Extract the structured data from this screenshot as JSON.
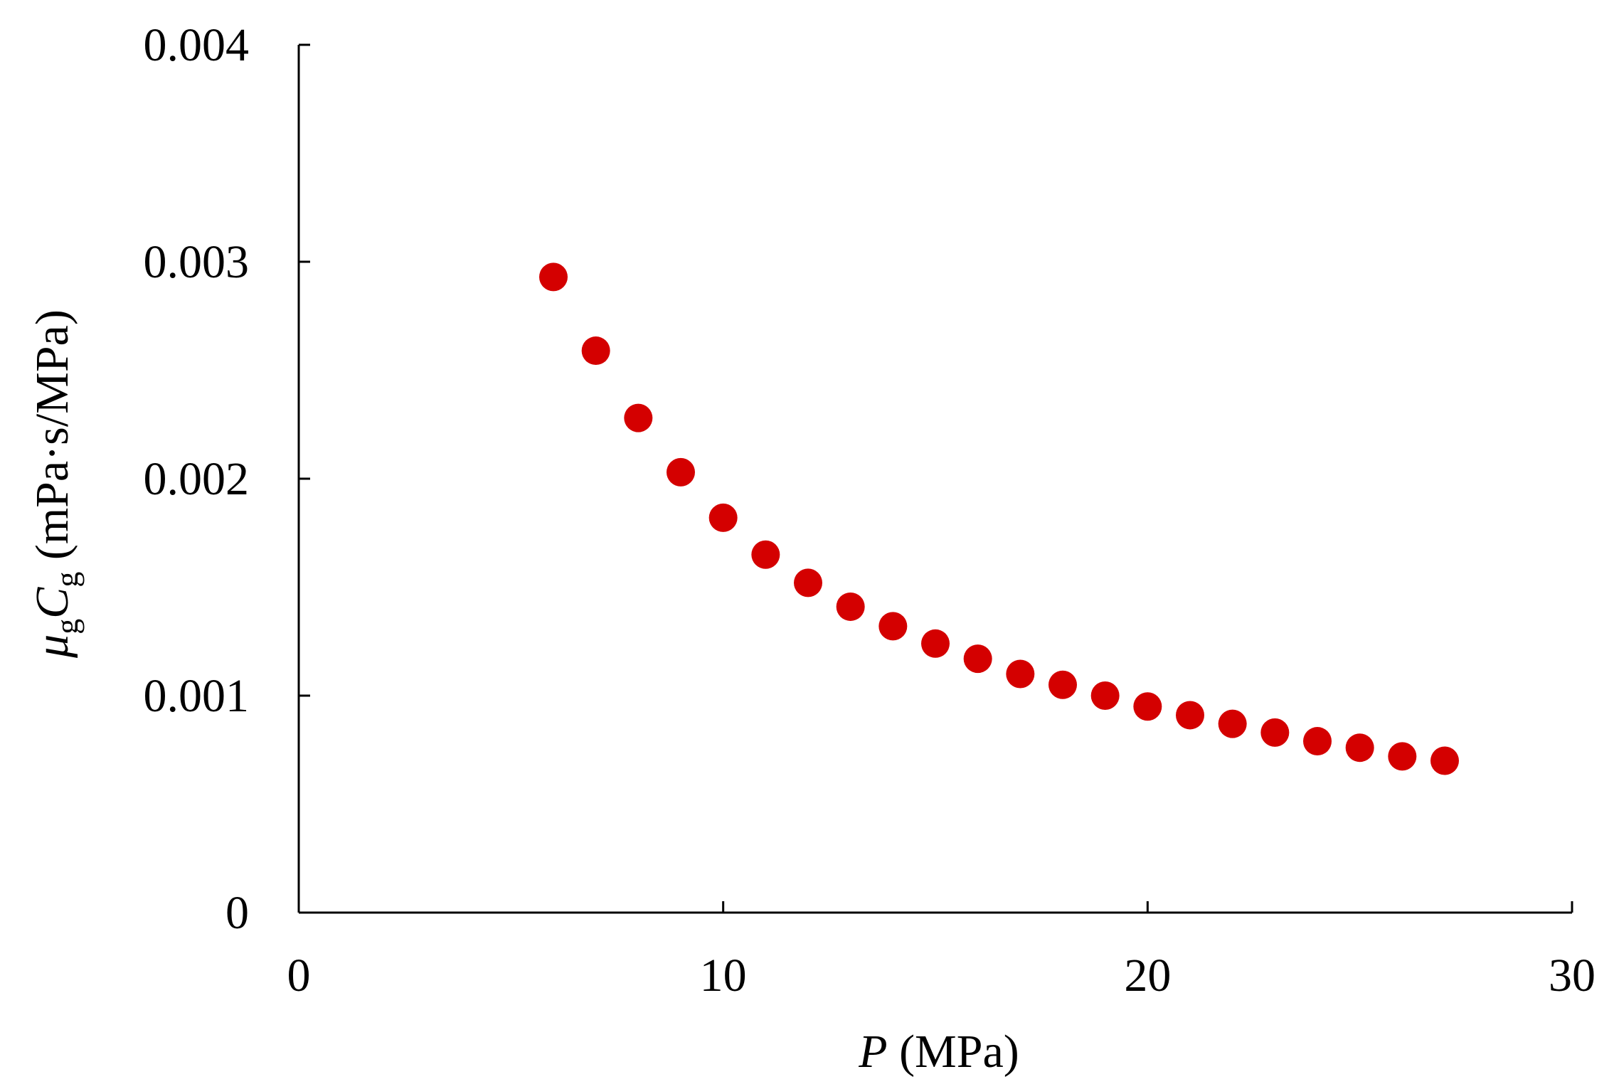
{
  "chart_data": {
    "type": "scatter",
    "title": "",
    "xlabel": {
      "var": "P",
      "unit": " (MPa)"
    },
    "ylabel": {
      "var1": "μ",
      "sub1": "g",
      "var2": "C",
      "sub2": "g",
      "unit": " (mPa·s/MPa)"
    },
    "xlim": [
      0,
      30
    ],
    "ylim": [
      0,
      0.004
    ],
    "x_ticks": [
      0,
      10,
      20,
      30
    ],
    "x_tick_labels": [
      "0",
      "10",
      "20",
      "30"
    ],
    "y_ticks": [
      0,
      0.001,
      0.002,
      0.003,
      0.004
    ],
    "y_tick_labels": [
      "0",
      "0.001",
      "0.002",
      "0.003",
      "0.004"
    ],
    "grid": false,
    "marker_color": "#d40000",
    "series": [
      {
        "x": [
          6,
          7,
          8,
          9,
          10,
          11,
          12,
          13,
          14,
          15,
          16,
          17,
          18,
          19,
          20,
          21,
          22,
          23,
          24,
          25,
          26,
          27
        ],
        "y": [
          0.00293,
          0.00259,
          0.00228,
          0.00203,
          0.00182,
          0.00165,
          0.00152,
          0.00141,
          0.00132,
          0.00124,
          0.00117,
          0.0011,
          0.00105,
          0.001,
          0.00095,
          0.00091,
          0.00087,
          0.00083,
          0.00079,
          0.00076,
          0.00072,
          0.0007
        ]
      }
    ]
  }
}
